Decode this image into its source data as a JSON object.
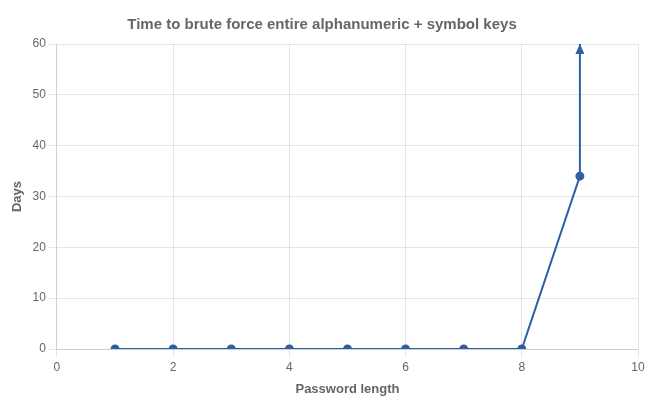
{
  "chart_data": {
    "type": "line",
    "title": "Time to brute force entire alphanumeric + symbol keys",
    "xlabel": "Password length",
    "ylabel": "Days",
    "x": [
      1,
      2,
      3,
      4,
      5,
      6,
      7,
      8,
      9
    ],
    "values": [
      0.0,
      0.0,
      0.0,
      0.0,
      0.0,
      0.0,
      0.0,
      0.0,
      34.0
    ],
    "color": "#2E5FA3",
    "marker": "circle",
    "arrow": {
      "x": [
        9,
        9
      ],
      "y": [
        34.0,
        60.0
      ]
    },
    "xlim": [
      0,
      10
    ],
    "ylim": [
      0,
      60
    ],
    "xticks": [
      0,
      2,
      4,
      6,
      8,
      10
    ],
    "yticks": [
      0,
      10,
      20,
      30,
      40,
      50,
      60
    ],
    "grid": true
  }
}
